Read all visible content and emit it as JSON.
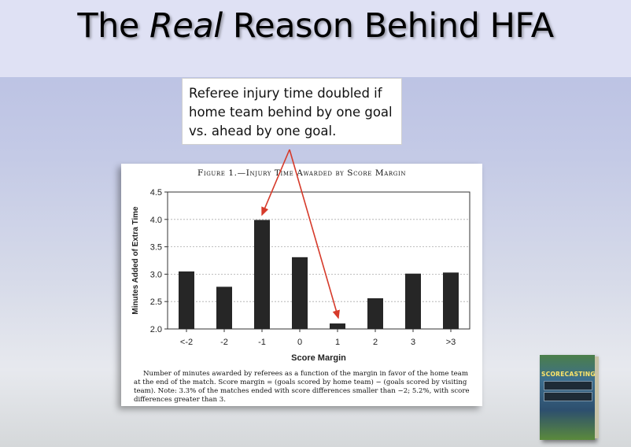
{
  "slide": {
    "title_pre": "The ",
    "title_em": "Real",
    "title_post": " Reason Behind HFA"
  },
  "callout": {
    "text": "Referee injury time doubled if home team behind by one goal vs. ahead by one goal."
  },
  "figure": {
    "title": "Figure 1.—Injury Time Awarded by Score Margin",
    "caption": "Number of minutes awarded by referees as a function of the margin in favor of the home team at the end of the match. Score margin = (goals scored by home team) − (goals scored by visiting team). Note: 3.3% of the matches ended with score differences smaller than −2; 5.2%, with score differences greater than 3."
  },
  "chart_data": {
    "type": "bar",
    "title": "Figure 1.—Injury Time Awarded by Score Margin",
    "categories": [
      "<-2",
      "-2",
      "-1",
      "0",
      "1",
      "2",
      "3",
      ">3"
    ],
    "values": [
      3.05,
      2.77,
      3.99,
      3.31,
      2.1,
      2.56,
      3.01,
      3.03
    ],
    "xlabel": "Score Margin",
    "ylabel": "Minutes Added of Extra Time",
    "ylim": [
      2.0,
      4.5
    ],
    "yticks": [
      "2.0",
      "2.5",
      "3.0",
      "3.5",
      "4.0",
      "4.5"
    ],
    "grid": true,
    "bar_color": "#262626",
    "annotation_color": "#d63a2a"
  },
  "book": {
    "title": "SCORECASTING"
  }
}
